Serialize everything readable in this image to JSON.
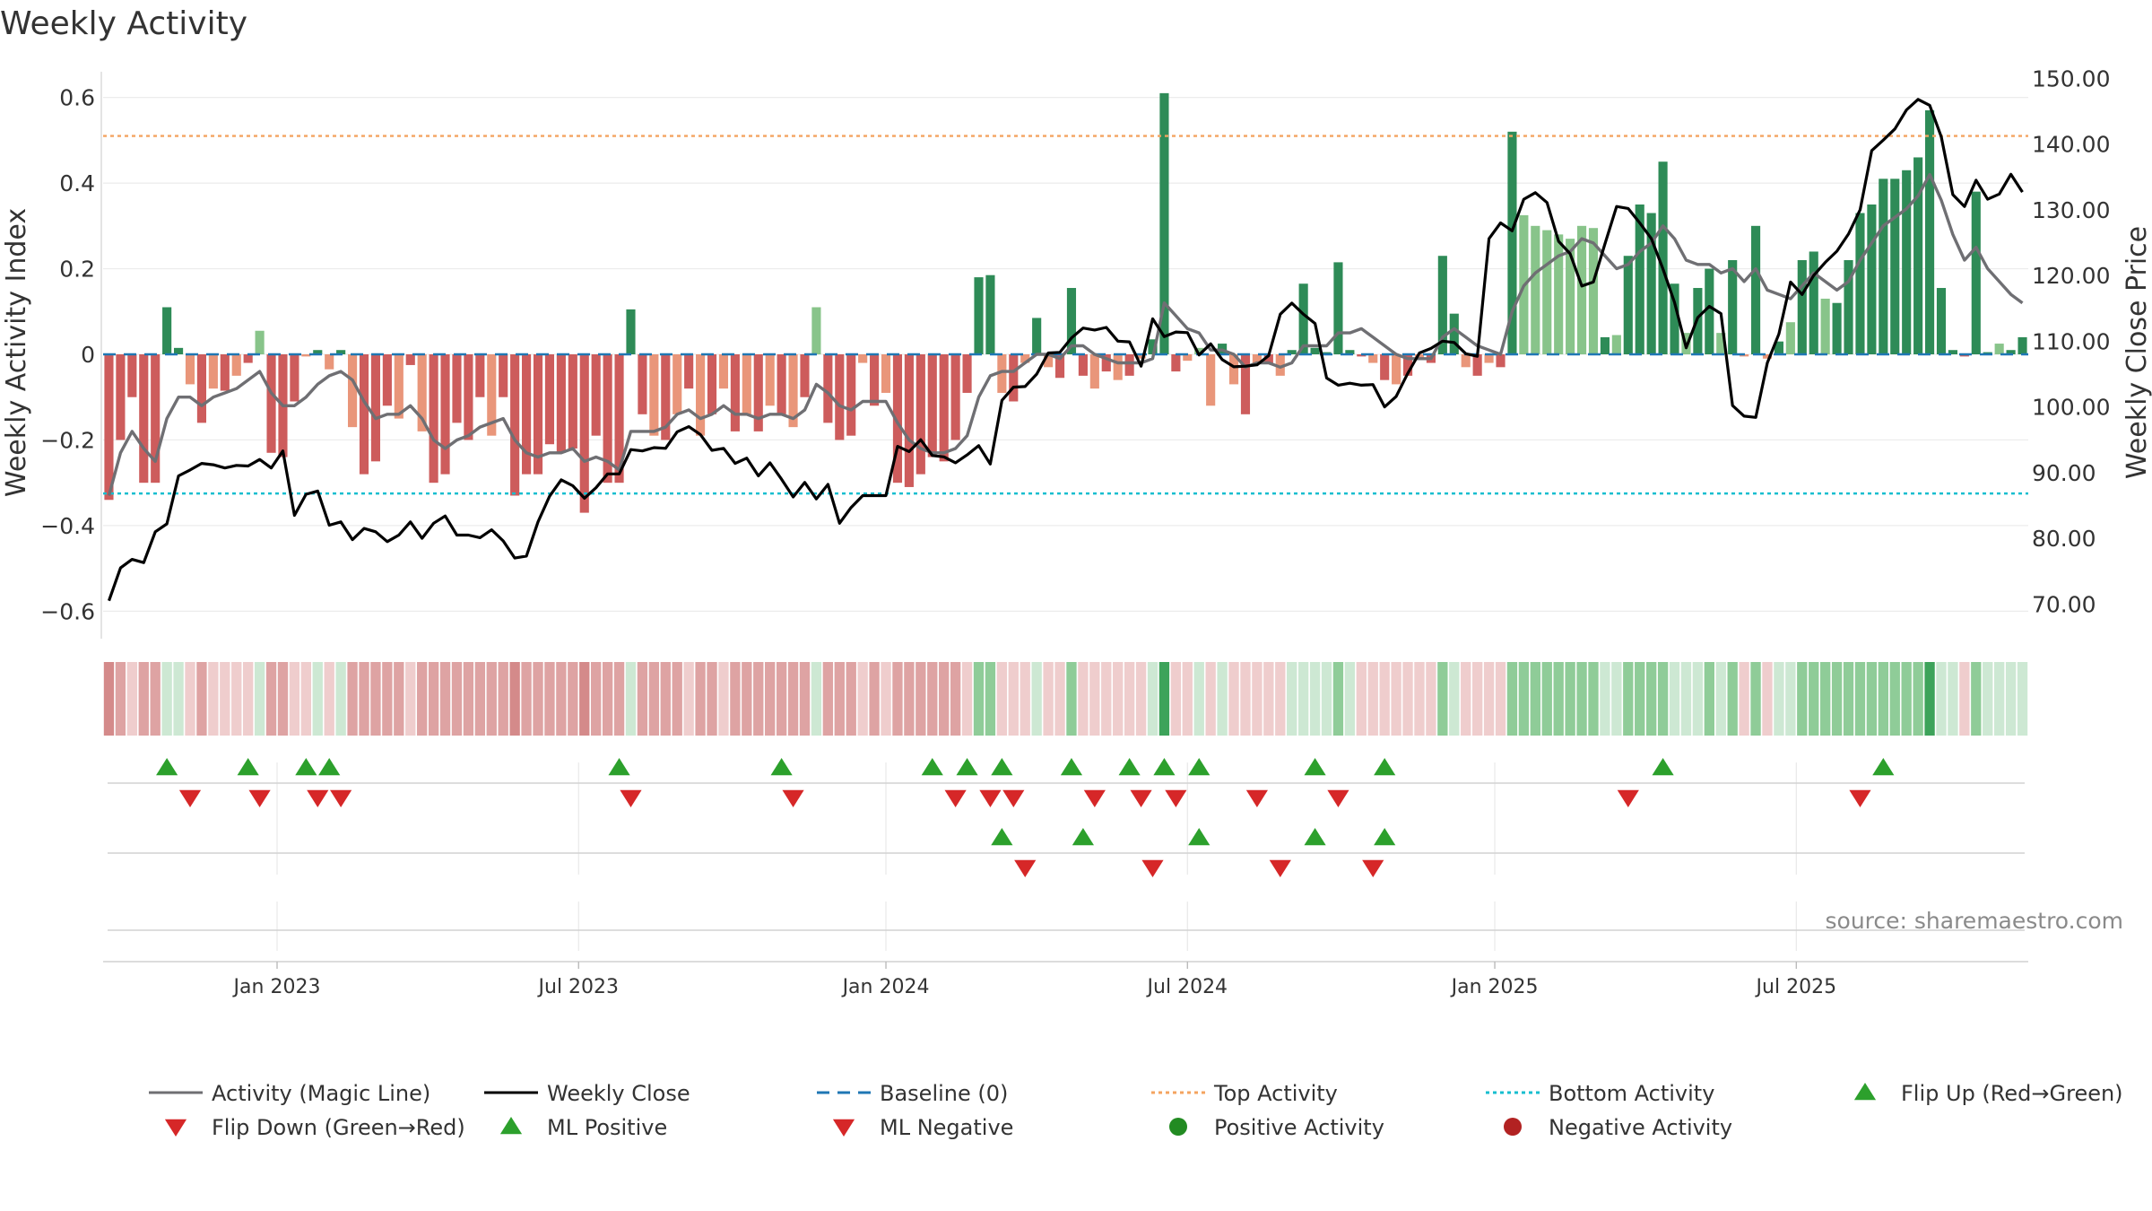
{
  "chart_data": {
    "type": "bar",
    "title": "Weekly Activity",
    "ylabel_left": "Weekly Activity Index",
    "ylabel_right": "Weekly Close Price",
    "source": "source: sharemaestro.com",
    "ylim_left": [
      -0.66,
      0.66
    ],
    "ylim_right": [
      65.0,
      151.0
    ],
    "yticks_left": [
      {
        "v": 0.6,
        "label": "0.6"
      },
      {
        "v": 0.4,
        "label": "0.4"
      },
      {
        "v": 0.2,
        "label": "0.2"
      },
      {
        "v": 0,
        "label": "0"
      },
      {
        "v": -0.2,
        "label": "−0.2"
      },
      {
        "v": -0.4,
        "label": "−0.4"
      },
      {
        "v": -0.6,
        "label": "−0.6"
      }
    ],
    "yticks_right": [
      {
        "v": 150,
        "label": "150.00"
      },
      {
        "v": 140,
        "label": "140.00"
      },
      {
        "v": 130,
        "label": "130.00"
      },
      {
        "v": 120,
        "label": "120.00"
      },
      {
        "v": 110,
        "label": "110.00"
      },
      {
        "v": 100,
        "label": "100.00"
      },
      {
        "v": 90,
        "label": "90.00"
      },
      {
        "v": 80,
        "label": "80.00"
      },
      {
        "v": 70,
        "label": "70.00"
      }
    ],
    "xticks": [
      {
        "week": 14.5,
        "label": "Jan 2023"
      },
      {
        "week": 40.5,
        "label": "Jul 2023"
      },
      {
        "week": 67,
        "label": "Jan 2024"
      },
      {
        "week": 93,
        "label": "Jul 2024"
      },
      {
        "week": 119.5,
        "label": "Jan 2025"
      },
      {
        "week": 145.5,
        "label": "Jul 2025"
      }
    ],
    "top_activity": 0.51,
    "bottom_activity": -0.325,
    "baseline": 0,
    "colors": {
      "pos_strong": "#2e8b57",
      "pos_weak": "#88c48a",
      "neg_strong": "#cd5c5c",
      "neg_weak": "#e9967a",
      "magic_line": "#6f6f73",
      "close_line": "#000000",
      "baseline": "#1f77b4",
      "top_activity": "#f4a460",
      "bottom_activity": "#17becf",
      "tri_up": "#2ca02c",
      "tri_down": "#d62728",
      "legend_pos_dot": "#228b22",
      "legend_neg_dot": "#b22222"
    },
    "activity": [
      -0.34,
      -0.2,
      -0.1,
      -0.3,
      -0.3,
      0.11,
      0.015,
      -0.07,
      -0.16,
      -0.08,
      -0.085,
      -0.05,
      -0.02,
      0.055,
      -0.23,
      -0.24,
      -0.11,
      -0.005,
      0.01,
      -0.035,
      0.01,
      -0.17,
      -0.28,
      -0.25,
      -0.12,
      -0.15,
      -0.025,
      -0.18,
      -0.3,
      -0.28,
      -0.16,
      -0.2,
      -0.1,
      -0.19,
      -0.1,
      -0.33,
      -0.28,
      -0.28,
      -0.21,
      -0.23,
      -0.22,
      -0.37,
      -0.19,
      -0.3,
      -0.3,
      0.105,
      -0.14,
      -0.19,
      -0.2,
      -0.14,
      -0.08,
      -0.19,
      -0.14,
      -0.08,
      -0.18,
      -0.14,
      -0.18,
      -0.12,
      -0.14,
      -0.17,
      -0.1,
      0.11,
      -0.16,
      -0.2,
      -0.19,
      -0.02,
      -0.12,
      -0.09,
      -0.3,
      -0.31,
      -0.28,
      -0.24,
      -0.25,
      -0.2,
      -0.09,
      0.18,
      0.185,
      -0.09,
      -0.11,
      -0.02,
      0.085,
      -0.03,
      -0.055,
      0.155,
      -0.05,
      -0.08,
      -0.04,
      -0.06,
      -0.05,
      -0.01,
      0.035,
      0.61,
      -0.04,
      -0.015,
      0.015,
      -0.12,
      0.025,
      -0.07,
      -0.14,
      -0.02,
      -0.02,
      -0.05,
      0.01,
      0.165,
      0.015,
      0.005,
      0.215,
      0.01,
      -0.005,
      -0.02,
      -0.06,
      -0.07,
      -0.05,
      -0.01,
      -0.02,
      0.23,
      0.095,
      -0.03,
      -0.05,
      -0.02,
      -0.03,
      0.52,
      0.325,
      0.3,
      0.29,
      0.28,
      0.27,
      0.3,
      0.295,
      0.04,
      0.045,
      0.23,
      0.35,
      0.33,
      0.45,
      0.165,
      0.05,
      0.155,
      0.2,
      0.05,
      0.22,
      -0.005,
      0.3,
      -0.01,
      0.03,
      0.075,
      0.22,
      0.24,
      0.13,
      0.12,
      0.22,
      0.33,
      0.35,
      0.41,
      0.41,
      0.43,
      0.46,
      0.57,
      0.155,
      0.01,
      -0.005,
      0.38,
      0.005,
      0.025,
      0.01,
      0.04
    ],
    "magic": [
      -0.33,
      -0.23,
      -0.18,
      -0.22,
      -0.25,
      -0.15,
      -0.1,
      -0.1,
      -0.12,
      -0.1,
      -0.09,
      -0.08,
      -0.06,
      -0.04,
      -0.09,
      -0.12,
      -0.12,
      -0.1,
      -0.07,
      -0.05,
      -0.04,
      -0.06,
      -0.11,
      -0.15,
      -0.14,
      -0.14,
      -0.12,
      -0.15,
      -0.2,
      -0.22,
      -0.2,
      -0.19,
      -0.17,
      -0.16,
      -0.15,
      -0.2,
      -0.23,
      -0.24,
      -0.23,
      -0.23,
      -0.22,
      -0.25,
      -0.24,
      -0.25,
      -0.27,
      -0.18,
      -0.18,
      -0.18,
      -0.17,
      -0.14,
      -0.13,
      -0.15,
      -0.14,
      -0.12,
      -0.14,
      -0.14,
      -0.15,
      -0.14,
      -0.14,
      -0.15,
      -0.13,
      -0.07,
      -0.09,
      -0.12,
      -0.13,
      -0.11,
      -0.11,
      -0.11,
      -0.16,
      -0.2,
      -0.22,
      -0.23,
      -0.23,
      -0.22,
      -0.19,
      -0.1,
      -0.05,
      -0.04,
      -0.04,
      -0.02,
      0.0,
      0.0,
      -0.01,
      0.02,
      0.02,
      0.0,
      -0.01,
      -0.02,
      -0.02,
      -0.02,
      -0.01,
      0.12,
      0.09,
      0.06,
      0.05,
      0.01,
      0.01,
      0.0,
      -0.03,
      -0.02,
      -0.02,
      -0.03,
      -0.02,
      0.02,
      0.02,
      0.02,
      0.05,
      0.05,
      0.06,
      0.04,
      0.02,
      0.0,
      -0.01,
      -0.01,
      -0.01,
      0.04,
      0.06,
      0.04,
      0.02,
      0.01,
      0.0,
      0.1,
      0.16,
      0.19,
      0.21,
      0.23,
      0.24,
      0.27,
      0.26,
      0.23,
      0.2,
      0.21,
      0.24,
      0.26,
      0.3,
      0.27,
      0.22,
      0.21,
      0.21,
      0.19,
      0.2,
      0.17,
      0.2,
      0.15,
      0.14,
      0.13,
      0.16,
      0.19,
      0.17,
      0.15,
      0.17,
      0.22,
      0.26,
      0.3,
      0.32,
      0.34,
      0.37,
      0.42,
      0.36,
      0.28,
      0.22,
      0.25,
      0.2,
      0.17,
      0.14,
      0.12
    ],
    "close": [
      70.5,
      75.5,
      76.8,
      76.3,
      81.0,
      82.2,
      89.5,
      90.4,
      91.4,
      91.2,
      90.7,
      91.1,
      91.0,
      92.0,
      90.7,
      93.3,
      83.5,
      86.7,
      87.2,
      82.0,
      82.5,
      79.8,
      81.5,
      81.0,
      79.5,
      80.5,
      82.5,
      80.0,
      82.3,
      83.4,
      80.5,
      80.5,
      80.1,
      81.3,
      79.6,
      77.0,
      77.3,
      82.5,
      86.4,
      88.9,
      88.0,
      86.1,
      87.7,
      89.8,
      89.8,
      93.5,
      93.3,
      93.8,
      93.7,
      96.2,
      97.0,
      95.8,
      93.4,
      93.7,
      91.4,
      92.2,
      89.5,
      91.5,
      89.0,
      86.3,
      88.5,
      86.0,
      88.2,
      82.3,
      84.7,
      86.5,
      86.5,
      86.5,
      94.0,
      93.2,
      95.0,
      92.6,
      92.4,
      91.5,
      92.7,
      94.1,
      91.3,
      101.0,
      103.0,
      103.1,
      105.0,
      108.2,
      108.3,
      110.5,
      112.0,
      111.7,
      112.1,
      110.0,
      109.9,
      106.2,
      113.4,
      110.7,
      111.4,
      111.3,
      107.9,
      109.6,
      107.2,
      106.1,
      106.2,
      106.4,
      107.8,
      114.1,
      115.8,
      114.1,
      112.7,
      104.4,
      103.3,
      103.6,
      103.3,
      103.4,
      100.0,
      101.6,
      105.1,
      108.2,
      108.9,
      110.0,
      109.8,
      108.1,
      107.7,
      125.6,
      128.0,
      126.8,
      131.6,
      132.6,
      131.1,
      125.2,
      123.3,
      118.4,
      119.0,
      124.8,
      130.5,
      130.2,
      128.0,
      125.6,
      121.0,
      115.9,
      109.0,
      113.6,
      115.3,
      114.2,
      100.2,
      98.6,
      98.4,
      106.7,
      111.1,
      119.0,
      117.1,
      120.0,
      122.0,
      123.7,
      126.3,
      130.0,
      139.0,
      140.6,
      142.3,
      145.2,
      146.8,
      145.9,
      141.1,
      132.3,
      130.5,
      134.5,
      131.6,
      132.4,
      135.4,
      132.7
    ],
    "heat_levels": [
      -3,
      -2,
      -1,
      -2,
      -2,
      1,
      1,
      -1,
      -2,
      -1,
      -1,
      -1,
      -1,
      1,
      -2,
      -2,
      -1,
      -1,
      1,
      -1,
      1,
      -2,
      -2,
      -2,
      -2,
      -2,
      -1,
      -2,
      -2,
      -2,
      -2,
      -2,
      -2,
      -2,
      -2,
      -3,
      -2,
      -2,
      -2,
      -2,
      -2,
      -3,
      -2,
      -2,
      -2,
      1,
      -2,
      -2,
      -2,
      -2,
      -1,
      -2,
      -2,
      -1,
      -2,
      -2,
      -2,
      -2,
      -2,
      -2,
      -2,
      1,
      -2,
      -2,
      -2,
      -1,
      -2,
      -1,
      -2,
      -2,
      -2,
      -2,
      -2,
      -2,
      -1,
      2,
      2,
      -1,
      -1,
      -1,
      1,
      -1,
      -1,
      2,
      -1,
      -1,
      -1,
      -1,
      -1,
      -1,
      1,
      3,
      -1,
      -1,
      1,
      -1,
      1,
      -1,
      -1,
      -1,
      -1,
      -1,
      1,
      1,
      1,
      1,
      2,
      1,
      -1,
      -1,
      -1,
      -1,
      -1,
      -1,
      -1,
      2,
      1,
      -1,
      -1,
      -1,
      -1,
      2,
      2,
      2,
      2,
      2,
      2,
      2,
      2,
      1,
      1,
      2,
      2,
      2,
      2,
      1,
      1,
      1,
      2,
      1,
      2,
      -1,
      2,
      -1,
      1,
      1,
      2,
      2,
      2,
      2,
      2,
      2,
      2,
      2,
      2,
      2,
      2,
      3,
      1,
      1,
      -1,
      2,
      1,
      1,
      1,
      1
    ],
    "flip_up_weeks": [
      5,
      12,
      17,
      19,
      44,
      58,
      71,
      74,
      77,
      83,
      88,
      91,
      94,
      104,
      110,
      134,
      153
    ],
    "flip_down_weeks": [
      7,
      13,
      18,
      20,
      45,
      59,
      73,
      76,
      78,
      85,
      89,
      92,
      99,
      106,
      131,
      151
    ],
    "ml_positive_weeks": [
      77,
      84,
      94,
      104,
      110
    ],
    "ml_negative_weeks": [
      79,
      90,
      101,
      109
    ],
    "legend": [
      {
        "kind": "line-solid-gray",
        "label": "Activity (Magic Line)"
      },
      {
        "kind": "line-solid-black",
        "label": "Weekly Close"
      },
      {
        "kind": "line-dash-blue",
        "label": "Baseline (0)"
      },
      {
        "kind": "line-dot-orange",
        "label": "Top Activity"
      },
      {
        "kind": "line-dot-cyan",
        "label": "Bottom Activity"
      },
      {
        "kind": "tri-up-green",
        "label": "Flip Up (Red→Green)"
      },
      {
        "kind": "tri-down-red",
        "label": "Flip Down (Green→Red)"
      },
      {
        "kind": "tri-up-green",
        "label": "ML Positive"
      },
      {
        "kind": "tri-down-red",
        "label": "ML Negative"
      },
      {
        "kind": "dot-green",
        "label": "Positive Activity"
      },
      {
        "kind": "dot-red",
        "label": "Negative Activity"
      }
    ]
  }
}
